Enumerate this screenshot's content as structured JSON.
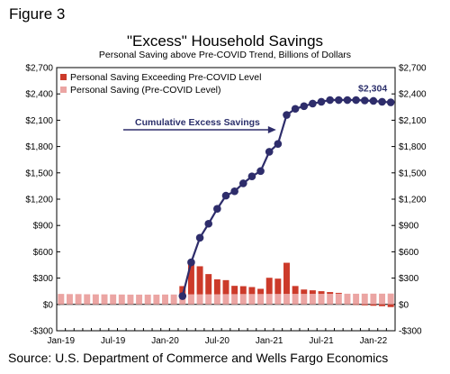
{
  "figure_label": "Figure 3",
  "source": "Source: U.S. Department of Commerce and Wells Fargo Economics",
  "chart_data": {
    "type": "bar",
    "title": "\"Excess\" Household Savings",
    "subtitle": "Personal Saving above Pre-COVID Trend, Billions of Dollars",
    "ylim": [
      -300,
      2700
    ],
    "yticks": [
      -300,
      0,
      300,
      600,
      900,
      1200,
      1500,
      1800,
      2100,
      2400,
      2700
    ],
    "ytick_labels": [
      "-$300",
      "$0",
      "$300",
      "$600",
      "$900",
      "$1,200",
      "$1,500",
      "$1,800",
      "$2,100",
      "$2,400",
      "$2,700"
    ],
    "xticks": [
      "Jan-19",
      "Jul-19",
      "Jan-20",
      "Jul-20",
      "Jan-21",
      "Jul-21",
      "Jan-22"
    ],
    "legend_position": "top-left",
    "grid": false,
    "colors": {
      "excess": "#cc3a2a",
      "precovid": "#eba5a3",
      "cumulative": "#2e2d6b"
    },
    "categories": [
      "2019-01",
      "2019-02",
      "2019-03",
      "2019-04",
      "2019-05",
      "2019-06",
      "2019-07",
      "2019-08",
      "2019-09",
      "2019-10",
      "2019-11",
      "2019-12",
      "2020-01",
      "2020-02",
      "2020-03",
      "2020-04",
      "2020-05",
      "2020-06",
      "2020-07",
      "2020-08",
      "2020-09",
      "2020-10",
      "2020-11",
      "2020-12",
      "2021-01",
      "2021-02",
      "2021-03",
      "2021-04",
      "2021-05",
      "2021-06",
      "2021-07",
      "2021-08",
      "2021-09",
      "2021-10",
      "2021-11",
      "2021-12",
      "2022-01",
      "2022-02",
      "2022-03"
    ],
    "series": [
      {
        "name": "Personal Saving Exceeding Pre-COVID Level",
        "kind": "bar",
        "values": [
          0,
          0,
          0,
          0,
          0,
          0,
          0,
          0,
          0,
          0,
          0,
          0,
          0,
          0,
          95,
          360,
          320,
          230,
          170,
          160,
          95,
          90,
          80,
          60,
          185,
          175,
          355,
          90,
          50,
          40,
          30,
          20,
          10,
          0,
          -5,
          -10,
          -15,
          -20,
          -30
        ]
      },
      {
        "name": "Personal Saving (Pre-COVID Level)",
        "kind": "bar",
        "values": [
          120,
          118,
          118,
          116,
          115,
          115,
          114,
          113,
          112,
          112,
          112,
          112,
          113,
          113,
          114,
          115,
          115,
          116,
          116,
          117,
          117,
          118,
          118,
          118,
          119,
          119,
          120,
          120,
          120,
          121,
          121,
          121,
          122,
          122,
          122,
          123,
          123,
          123,
          124
        ]
      },
      {
        "name": "Cumulative Excess Savings",
        "kind": "line",
        "values": [
          null,
          null,
          null,
          null,
          null,
          null,
          null,
          null,
          null,
          null,
          null,
          null,
          null,
          null,
          95,
          480,
          760,
          920,
          1090,
          1240,
          1290,
          1380,
          1460,
          1520,
          1740,
          1830,
          2160,
          2230,
          2260,
          2290,
          2310,
          2330,
          2330,
          2330,
          2330,
          2325,
          2320,
          2310,
          2304
        ]
      }
    ],
    "annotations": [
      {
        "text": "Cumulative Excess Savings",
        "target": "2021-02"
      },
      {
        "text": "$2,304",
        "target": "2022-03"
      }
    ]
  }
}
